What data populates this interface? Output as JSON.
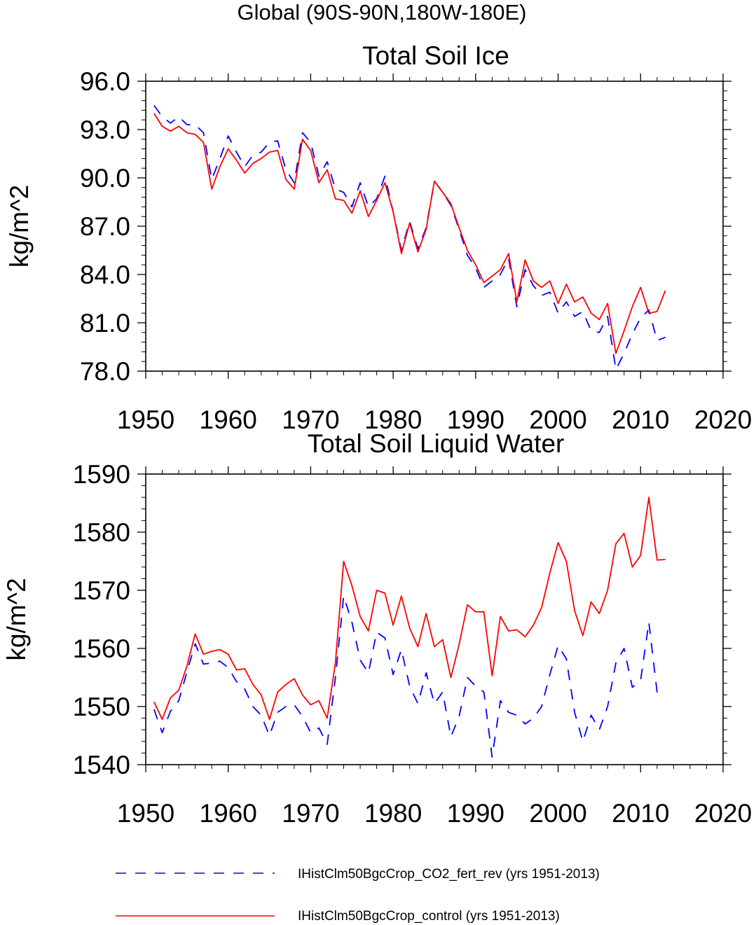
{
  "figure": {
    "suptitle": "Global (90S-90N,180W-180E)"
  },
  "legend": [
    {
      "label": "IHistClm50BgcCrop_CO2_fert_rev (yrs 1951-2013)",
      "color": "#0000ff",
      "dash": "dashed"
    },
    {
      "label": "IHistClm50BgcCrop_control (yrs 1951-2013)",
      "color": "#ff0000",
      "dash": "solid"
    }
  ],
  "chart_data": [
    {
      "type": "line",
      "title": "Total Soil Ice",
      "xlabel": "",
      "ylabel": "kg/m^2",
      "xlim": [
        1950,
        2020
      ],
      "ylim": [
        78,
        96
      ],
      "x_ticks": [
        "1950",
        "1960",
        "1970",
        "1980",
        "1990",
        "2000",
        "2010",
        "2020"
      ],
      "y_ticks": [
        "78.0",
        "81.0",
        "84.0",
        "87.0",
        "90.0",
        "93.0",
        "96.0"
      ],
      "x": [
        1951,
        1952,
        1953,
        1954,
        1955,
        1956,
        1957,
        1958,
        1959,
        1960,
        1961,
        1962,
        1963,
        1964,
        1965,
        1966,
        1967,
        1968,
        1969,
        1970,
        1971,
        1972,
        1973,
        1974,
        1975,
        1976,
        1977,
        1978,
        1979,
        1980,
        1981,
        1982,
        1983,
        1984,
        1985,
        1986,
        1987,
        1988,
        1989,
        1990,
        1991,
        1992,
        1993,
        1994,
        1995,
        1996,
        1997,
        1998,
        1999,
        2000,
        2001,
        2002,
        2003,
        2004,
        2005,
        2006,
        2007,
        2008,
        2009,
        2010,
        2011,
        2012,
        2013
      ],
      "series": [
        {
          "name": "IHistClm50BgcCrop_CO2_fert_rev (yrs 1951-2013)",
          "color": "#0000ff",
          "dash": "dashed",
          "values": [
            94.5,
            93.8,
            93.4,
            93.8,
            93.3,
            93.3,
            92.8,
            89.9,
            91.2,
            92.6,
            91.6,
            90.7,
            91.4,
            91.6,
            92.2,
            92.3,
            90.5,
            89.7,
            92.8,
            92.2,
            90.1,
            91.0,
            89.3,
            89.1,
            88.2,
            89.7,
            88.2,
            88.7,
            90.1,
            87.9,
            85.5,
            87.3,
            85.6,
            86.9,
            89.8,
            89.1,
            88.3,
            86.8,
            85.2,
            84.4,
            83.2,
            83.6,
            84.0,
            85.0,
            82.0,
            84.3,
            83.3,
            82.7,
            82.9,
            81.6,
            82.3,
            81.4,
            81.7,
            80.5,
            80.4,
            81.4,
            78.1,
            79.1,
            80.3,
            81.3,
            81.8,
            79.9,
            80.1
          ]
        },
        {
          "name": "IHistClm50BgcCrop_control (yrs 1951-2013)",
          "color": "#ff0000",
          "dash": "solid",
          "values": [
            94.0,
            93.2,
            92.9,
            93.2,
            92.8,
            92.7,
            92.2,
            89.3,
            90.7,
            91.8,
            91.1,
            90.3,
            90.9,
            91.2,
            91.6,
            91.7,
            89.9,
            89.3,
            92.4,
            91.7,
            89.7,
            90.5,
            88.7,
            88.6,
            87.8,
            89.2,
            87.6,
            88.6,
            89.7,
            87.9,
            85.3,
            87.2,
            85.4,
            86.8,
            89.8,
            89.1,
            88.4,
            86.9,
            85.5,
            84.6,
            83.5,
            83.9,
            84.3,
            85.3,
            82.3,
            84.9,
            83.6,
            83.2,
            83.6,
            82.2,
            83.4,
            82.3,
            82.6,
            81.6,
            81.2,
            82.2,
            79.1,
            80.5,
            82.0,
            83.2,
            81.6,
            81.7,
            83.0
          ]
        }
      ]
    },
    {
      "type": "line",
      "title": "Total Soil Liquid Water",
      "xlabel": "",
      "ylabel": "kg/m^2",
      "xlim": [
        1950,
        2020
      ],
      "ylim": [
        1540,
        1590
      ],
      "x_ticks": [
        "1950",
        "1960",
        "1970",
        "1980",
        "1990",
        "2000",
        "2010",
        "2020"
      ],
      "y_ticks": [
        "1540",
        "1550",
        "1560",
        "1570",
        "1580",
        "1590"
      ],
      "x": [
        1951,
        1952,
        1953,
        1954,
        1955,
        1956,
        1957,
        1958,
        1959,
        1960,
        1961,
        1962,
        1963,
        1964,
        1965,
        1966,
        1967,
        1968,
        1969,
        1970,
        1971,
        1972,
        1973,
        1974,
        1975,
        1976,
        1977,
        1978,
        1979,
        1980,
        1981,
        1982,
        1983,
        1984,
        1985,
        1986,
        1987,
        1988,
        1989,
        1990,
        1991,
        1992,
        1993,
        1994,
        1995,
        1996,
        1997,
        1998,
        1999,
        2000,
        2001,
        2002,
        2003,
        2004,
        2005,
        2006,
        2007,
        2008,
        2009,
        2010,
        2011,
        2012,
        2013
      ],
      "series": [
        {
          "name": "IHistClm50BgcCrop_CO2_fert_rev (yrs 1951-2013)",
          "color": "#0000ff",
          "dash": "dashed",
          "values": [
            1549.5,
            1545.5,
            1549.2,
            1551.0,
            1556.0,
            1560.8,
            1557.3,
            1557.5,
            1557.8,
            1556.7,
            1554.3,
            1553.0,
            1550.0,
            1548.5,
            1545.0,
            1549.0,
            1550.0,
            1550.3,
            1548.3,
            1545.5,
            1546.3,
            1543.5,
            1555.0,
            1569.0,
            1564.5,
            1558.0,
            1555.8,
            1562.8,
            1561.8,
            1555.5,
            1559.8,
            1553.5,
            1550.5,
            1555.8,
            1550.5,
            1552.5,
            1544.8,
            1548.3,
            1555.0,
            1553.5,
            1552.5,
            1541.3,
            1551.0,
            1549.0,
            1548.5,
            1547.0,
            1548.0,
            1550.0,
            1555.5,
            1560.5,
            1558.2,
            1549.0,
            1544.0,
            1548.5,
            1546.0,
            1550.0,
            1557.5,
            1560.0,
            1553.3,
            1554.5,
            1564.5,
            1552.5,
            1553.0
          ]
        },
        {
          "name": "IHistClm50BgcCrop_control (yrs 1951-2013)",
          "color": "#ff0000",
          "dash": "solid",
          "values": [
            1550.8,
            1547.8,
            1551.5,
            1552.8,
            1557.0,
            1562.5,
            1559.0,
            1559.5,
            1559.8,
            1559.0,
            1556.3,
            1556.5,
            1553.8,
            1552.0,
            1547.8,
            1552.5,
            1553.8,
            1554.8,
            1552.0,
            1550.3,
            1551.0,
            1548.0,
            1557.5,
            1575.0,
            1570.8,
            1565.5,
            1563.0,
            1570.0,
            1569.5,
            1564.0,
            1569.0,
            1563.5,
            1560.3,
            1566.0,
            1560.3,
            1561.5,
            1555.0,
            1560.7,
            1567.5,
            1566.3,
            1566.3,
            1555.3,
            1565.5,
            1563.0,
            1563.2,
            1562.0,
            1564.0,
            1567.0,
            1573.0,
            1578.2,
            1575.0,
            1566.5,
            1562.2,
            1568.0,
            1566.0,
            1570.0,
            1578.0,
            1579.8,
            1574.0,
            1576.0,
            1586.0,
            1575.2,
            1575.3
          ]
        }
      ]
    }
  ]
}
